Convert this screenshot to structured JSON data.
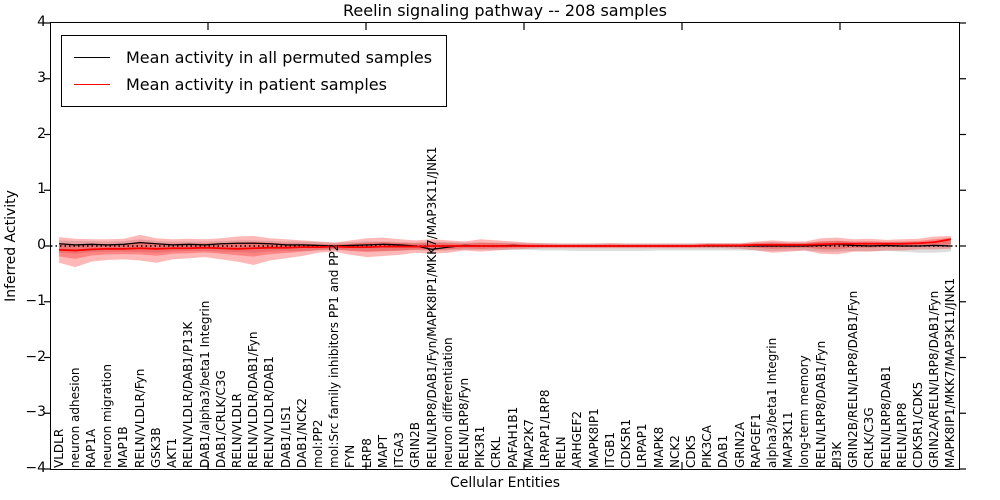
{
  "title": "Reelin signaling pathway -- 208 samples",
  "axes": {
    "ylabel": "Inferred Activity",
    "xlabel": "Cellular Entities",
    "yticks": [
      "4",
      "3",
      "2",
      "1",
      "0",
      "−1",
      "−2",
      "−3",
      "−4"
    ]
  },
  "legend": {
    "entries": [
      {
        "label": "Mean activity in all permuted samples",
        "color": "#000000"
      },
      {
        "label": "Mean activity in patient samples",
        "color": "#ff0000"
      }
    ]
  },
  "chart_data": {
    "type": "line",
    "title": "Reelin signaling pathway -- 208 samples",
    "xlabel": "Cellular Entities",
    "ylabel": "Inferred Activity",
    "ylim": [
      -4,
      4
    ],
    "grid": false,
    "legend_position": "upper left",
    "zero_line": true,
    "categories": [
      "VLDLR",
      "neuron adhesion",
      "RAP1A",
      "neuron migration",
      "MAP1B",
      "RELN/VLDLR/Fyn",
      "GSK3B",
      "AKT1",
      "RELN/VLDLR/DAB1/P13K",
      "DAB1/alpha3/beta1 Integrin",
      "DAB1/CRLK/C3G",
      "RELN/VLDLR",
      "RELN/VLDLR/DAB1/Fyn",
      "RELN/VLDLR/DAB1",
      "DAB1/LIS1",
      "DAB1/NCK2",
      "mol:PP2",
      "mol:Src family inhibitors PP1 and PP2",
      "FYN",
      "LRP8",
      "MAPT",
      "ITGA3",
      "GRIN2B",
      "RELN/LRP8/DAB1/Fyn/MAPK8IP1/MKK7/MAP3K11/JNK1",
      "neuron differentiation",
      "RELN/LRP8/Fyn",
      "PIK3R1",
      "CRKL",
      "PAFAH1B1",
      "MAP2K7",
      "LRPAP1/LRP8",
      "RELN",
      "ARHGEF2",
      "MAPK8IP1",
      "ITGB1",
      "CDK5R1",
      "LRPAP1",
      "MAPK8",
      "NCK2",
      "CDK5",
      "PIK3CA",
      "DAB1",
      "GRIN2A",
      "RAPGEF1",
      "alpha3/beta1 Integrin",
      "MAP3K11",
      "long-term memory",
      "RELN/LRP8/DAB1/Fyn",
      "PI3K",
      "GRIN2B/RELN/LRP8/DAB1/Fyn",
      "CRLK/C3G",
      "RELN/LRP8/DAB1",
      "RELN/LRP8",
      "CDK5R1/CDK5",
      "GRIN2A/RELN/LRP8/DAB1/Fyn",
      "MAPK8IP1/MKK7/MAP3K11/JNK1"
    ],
    "series": [
      {
        "name": "Mean activity in all permuted samples",
        "color": "#000000",
        "values": [
          0.04,
          0.02,
          0.03,
          0.02,
          0.03,
          0.06,
          0.04,
          0.02,
          0.03,
          0.02,
          0.04,
          0.05,
          0.05,
          0.04,
          0.02,
          0.02,
          0.01,
          0.0,
          0.01,
          0.02,
          0.03,
          0.02,
          0.0,
          -0.06,
          -0.02,
          0.01,
          0.0,
          0.0,
          0.01,
          0.0,
          0.0,
          0.0,
          0.0,
          0.0,
          0.0,
          0.0,
          0.0,
          0.0,
          0.0,
          0.0,
          0.0,
          0.0,
          0.0,
          0.0,
          0.0,
          0.0,
          0.0,
          0.01,
          0.03,
          0.01,
          0.0,
          0.01,
          0.0,
          0.0,
          0.01,
          0.0
        ]
      },
      {
        "name": "Mean activity in patient samples",
        "color": "#ff0000",
        "values": [
          -0.07,
          -0.08,
          -0.06,
          -0.05,
          -0.05,
          -0.04,
          -0.05,
          -0.04,
          -0.04,
          -0.03,
          -0.04,
          -0.05,
          -0.04,
          -0.03,
          -0.03,
          -0.02,
          -0.02,
          -0.01,
          -0.02,
          -0.02,
          -0.01,
          -0.01,
          -0.01,
          0.0,
          0.0,
          0.0,
          0.0,
          0.0,
          0.0,
          0.0,
          0.0,
          0.0,
          0.0,
          0.0,
          0.0,
          0.0,
          0.0,
          0.0,
          0.0,
          0.0,
          0.01,
          0.01,
          0.01,
          0.02,
          0.02,
          0.02,
          0.02,
          0.03,
          0.04,
          0.04,
          0.04,
          0.04,
          0.04,
          0.05,
          0.07,
          0.12
        ]
      }
    ],
    "bands": [
      {
        "name": "permuted-sample-spread",
        "color": "rgba(120,120,120,0.25)",
        "upper": [
          0.1,
          0.09,
          0.09,
          0.08,
          0.09,
          0.12,
          0.09,
          0.08,
          0.08,
          0.08,
          0.09,
          0.1,
          0.1,
          0.09,
          0.08,
          0.08,
          0.07,
          0.06,
          0.07,
          0.08,
          0.08,
          0.07,
          0.06,
          0.08,
          0.07,
          0.06,
          0.06,
          0.06,
          0.06,
          0.05,
          0.05,
          0.05,
          0.05,
          0.05,
          0.05,
          0.05,
          0.05,
          0.05,
          0.05,
          0.05,
          0.05,
          0.05,
          0.05,
          0.06,
          0.07,
          0.06,
          0.06,
          0.08,
          0.09,
          0.07,
          0.07,
          0.07,
          0.07,
          0.07,
          0.08,
          0.09
        ],
        "lower": [
          -0.12,
          -0.14,
          -0.11,
          -0.1,
          -0.1,
          -0.11,
          -0.12,
          -0.1,
          -0.09,
          -0.09,
          -0.1,
          -0.11,
          -0.12,
          -0.1,
          -0.09,
          -0.09,
          -0.08,
          -0.07,
          -0.08,
          -0.09,
          -0.09,
          -0.08,
          -0.07,
          -0.09,
          -0.08,
          -0.07,
          -0.07,
          -0.07,
          -0.07,
          -0.07,
          -0.08,
          -0.08,
          -0.09,
          -0.09,
          -0.09,
          -0.09,
          -0.09,
          -0.08,
          -0.08,
          -0.08,
          -0.08,
          -0.08,
          -0.08,
          -0.08,
          -0.09,
          -0.08,
          -0.08,
          -0.1,
          -0.1,
          -0.09,
          -0.09,
          -0.09,
          -0.1,
          -0.12,
          -0.12,
          -0.1
        ]
      },
      {
        "name": "patient-sample-spread",
        "color": "rgba(255,0,0,0.28)",
        "upper": [
          0.16,
          0.13,
          0.12,
          0.12,
          0.13,
          0.2,
          0.14,
          0.12,
          0.13,
          0.12,
          0.14,
          0.17,
          0.18,
          0.14,
          0.12,
          0.1,
          0.08,
          0.06,
          0.1,
          0.14,
          0.15,
          0.12,
          0.1,
          0.12,
          0.1,
          0.08,
          0.12,
          0.1,
          0.08,
          0.06,
          0.05,
          0.04,
          0.04,
          0.04,
          0.05,
          0.04,
          0.04,
          0.04,
          0.04,
          0.04,
          0.05,
          0.05,
          0.05,
          0.08,
          0.1,
          0.08,
          0.08,
          0.14,
          0.15,
          0.12,
          0.13,
          0.11,
          0.12,
          0.13,
          0.17,
          0.18
        ],
        "lower": [
          -0.3,
          -0.38,
          -0.28,
          -0.25,
          -0.24,
          -0.26,
          -0.3,
          -0.24,
          -0.22,
          -0.2,
          -0.24,
          -0.28,
          -0.34,
          -0.26,
          -0.22,
          -0.18,
          -0.12,
          -0.1,
          -0.16,
          -0.2,
          -0.18,
          -0.16,
          -0.12,
          -0.14,
          -0.12,
          -0.08,
          -0.1,
          -0.08,
          -0.06,
          -0.05,
          -0.04,
          -0.04,
          -0.04,
          -0.04,
          -0.04,
          -0.04,
          -0.04,
          -0.04,
          -0.04,
          -0.04,
          -0.04,
          -0.04,
          -0.05,
          -0.08,
          -0.12,
          -0.1,
          -0.08,
          -0.14,
          -0.15,
          -0.1,
          -0.1,
          -0.08,
          -0.08,
          -0.06,
          -0.06,
          -0.05
        ]
      }
    ]
  }
}
